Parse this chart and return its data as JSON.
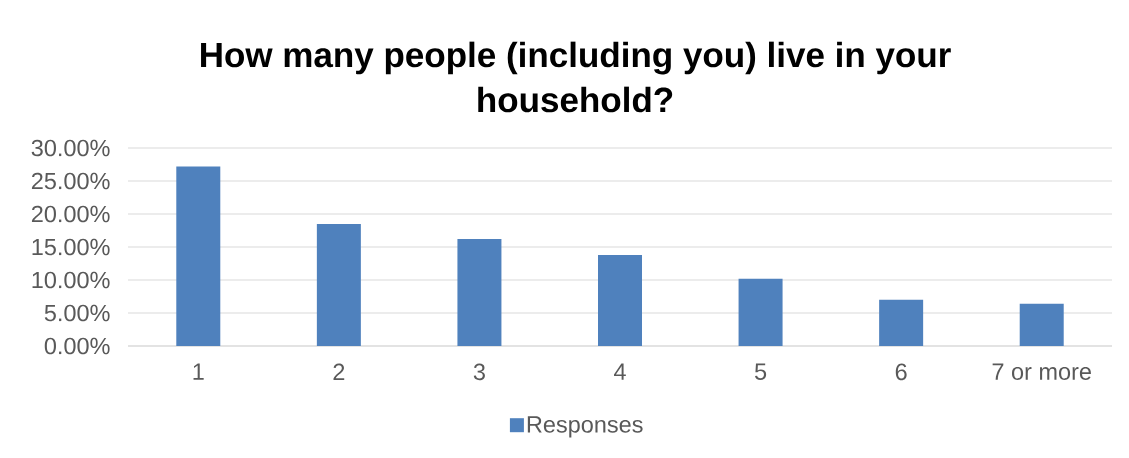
{
  "chart_data": {
    "type": "bar",
    "title": "How many people (including you) live in your household?",
    "categories": [
      "1",
      "2",
      "3",
      "4",
      "5",
      "6",
      "7 or more"
    ],
    "series": [
      {
        "name": "Responses",
        "color": "#4f81bd",
        "values": [
          27.2,
          18.5,
          16.2,
          13.8,
          10.2,
          7.0,
          6.4
        ]
      }
    ],
    "ylim": [
      0,
      30
    ],
    "yticks": [
      {
        "value": 0,
        "label": "0.00%"
      },
      {
        "value": 5,
        "label": "5.00%"
      },
      {
        "value": 10,
        "label": "10.00%"
      },
      {
        "value": 15,
        "label": "15.00%"
      },
      {
        "value": 20,
        "label": "20.00%"
      },
      {
        "value": 25,
        "label": "25.00%"
      },
      {
        "value": 30,
        "label": "30.00%"
      }
    ],
    "grid": "y",
    "legend": "bottom"
  }
}
